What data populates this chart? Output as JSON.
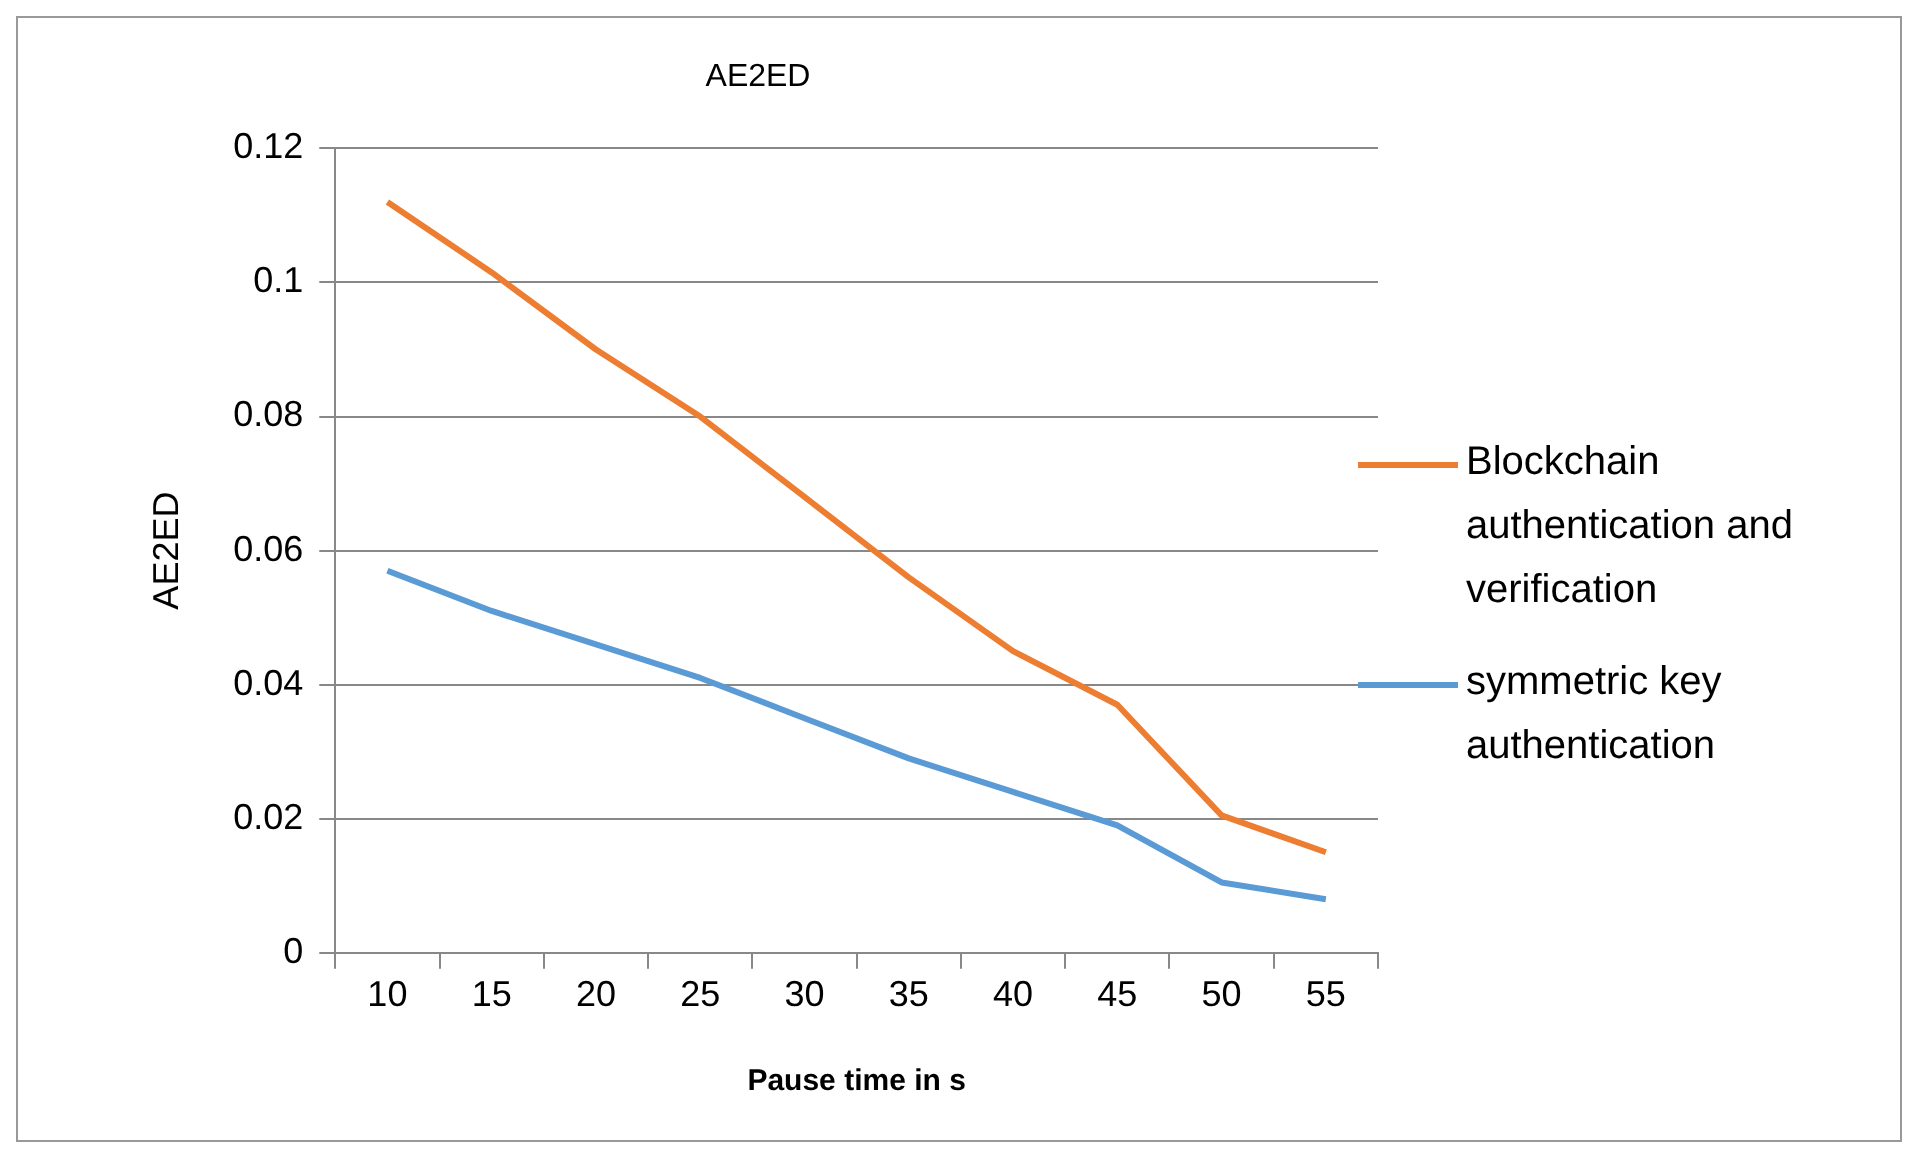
{
  "chart_data": {
    "type": "line",
    "title": "AE2ED",
    "xlabel": "Pause time in s",
    "ylabel": "AE2ED",
    "categories": [
      "10",
      "15",
      "20",
      "25",
      "30",
      "35",
      "40",
      "45",
      "50",
      "55"
    ],
    "series": [
      {
        "name": "Blockchain authentication and verification",
        "color": "#ed7d31",
        "values": [
          0.112,
          0.1015,
          0.09,
          0.08,
          0.068,
          0.056,
          0.045,
          0.037,
          0.0205,
          0.015
        ]
      },
      {
        "name": "symmetric key authentication",
        "color": "#5b9bd5",
        "values": [
          0.057,
          0.051,
          0.046,
          0.041,
          0.035,
          0.029,
          0.024,
          0.019,
          0.0105,
          0.008
        ]
      }
    ],
    "ylim": [
      0,
      0.12
    ],
    "yticks": [
      0,
      0.02,
      0.04,
      0.06,
      0.08,
      0.1,
      0.12
    ],
    "grid": "y",
    "legend": "right",
    "marker": "none",
    "line_style": "solid"
  }
}
